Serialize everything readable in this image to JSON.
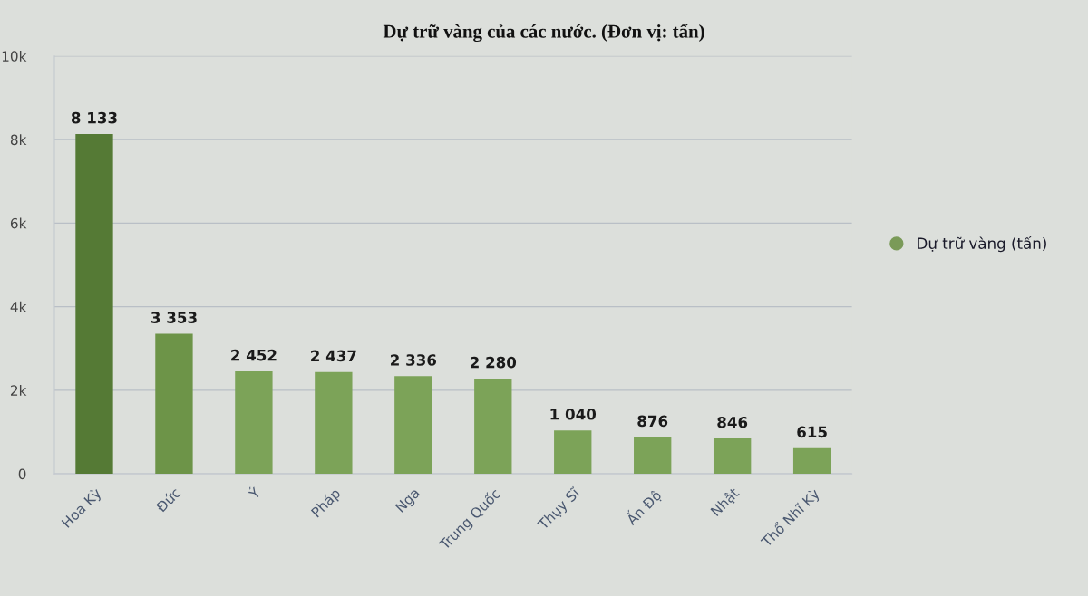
{
  "chart_data": {
    "type": "bar",
    "title": "Dự trữ vàng của các nước. (Đơn vị: tấn)",
    "categories": [
      "Hoa Kỳ",
      "Đức",
      "Ý",
      "Pháp",
      "Nga",
      "Trung Quốc",
      "Thụy Sĩ",
      "Ấn Độ",
      "Nhật",
      "Thổ Nhĩ Kỳ"
    ],
    "series": [
      {
        "name": "Dự trữ vàng (tấn)",
        "color": "#7a9a58",
        "colors": [
          "#557a35",
          "#6d9448",
          "#7ca358",
          "#7ca358",
          "#7ca358",
          "#7ca358",
          "#7ca358",
          "#7ca358",
          "#7ca358",
          "#7ca358"
        ],
        "values": [
          8133,
          3353,
          2452,
          2437,
          2336,
          2280,
          1040,
          876,
          846,
          615
        ],
        "value_labels": [
          "8 133",
          "3 353",
          "2 452",
          "2 437",
          "2 336",
          "2 280",
          "1 040",
          "876",
          "846",
          "615"
        ]
      }
    ],
    "ylim": [
      0,
      10000
    ],
    "yticks": [
      0,
      {
        "value": 2000,
        "label": "2k"
      },
      {
        "value": 4000,
        "label": "4k"
      },
      {
        "value": 6000,
        "label": "6k"
      },
      {
        "value": 8000,
        "label": "8k"
      },
      {
        "value": 10000,
        "label": "10k"
      }
    ],
    "grid": "y",
    "legend": "right"
  }
}
